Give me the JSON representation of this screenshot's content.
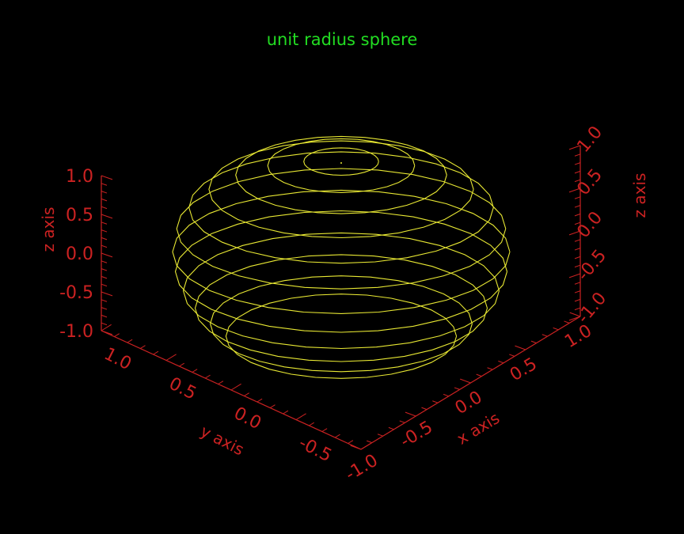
{
  "chart_data": {
    "type": "surface-3d-contour",
    "title": "unit radius sphere",
    "xlabel": "x axis",
    "ylabel": "y axis",
    "zlabel": "z axis",
    "xlim": [
      -1.0,
      1.0
    ],
    "ylim": [
      -1.0,
      1.0
    ],
    "zlim": [
      -1.0,
      1.0
    ],
    "x_tick_labels": [
      "-1.0",
      "-0.5",
      "0.0",
      "0.5",
      "1.0"
    ],
    "y_tick_labels": [
      "1.0",
      "0.5",
      "0.0",
      "-0.5"
    ],
    "z_left_tick_labels": [
      "1.0",
      "0.5",
      "0.0",
      "-0.5",
      "-1.0"
    ],
    "z_right_tick_labels": [
      "1.0",
      "0.5",
      "0.0",
      "-0.5",
      "-1.0"
    ],
    "contour_z_levels": [
      1.0,
      0.975,
      0.9,
      0.78,
      0.62,
      0.43,
      0.22,
      0.0,
      -0.18,
      -0.35,
      -0.5,
      -0.63,
      -0.73
    ],
    "colors": {
      "title": "#22dd22",
      "axes": "#cc2222",
      "surface": "#e8e833",
      "background": "#000000"
    }
  }
}
